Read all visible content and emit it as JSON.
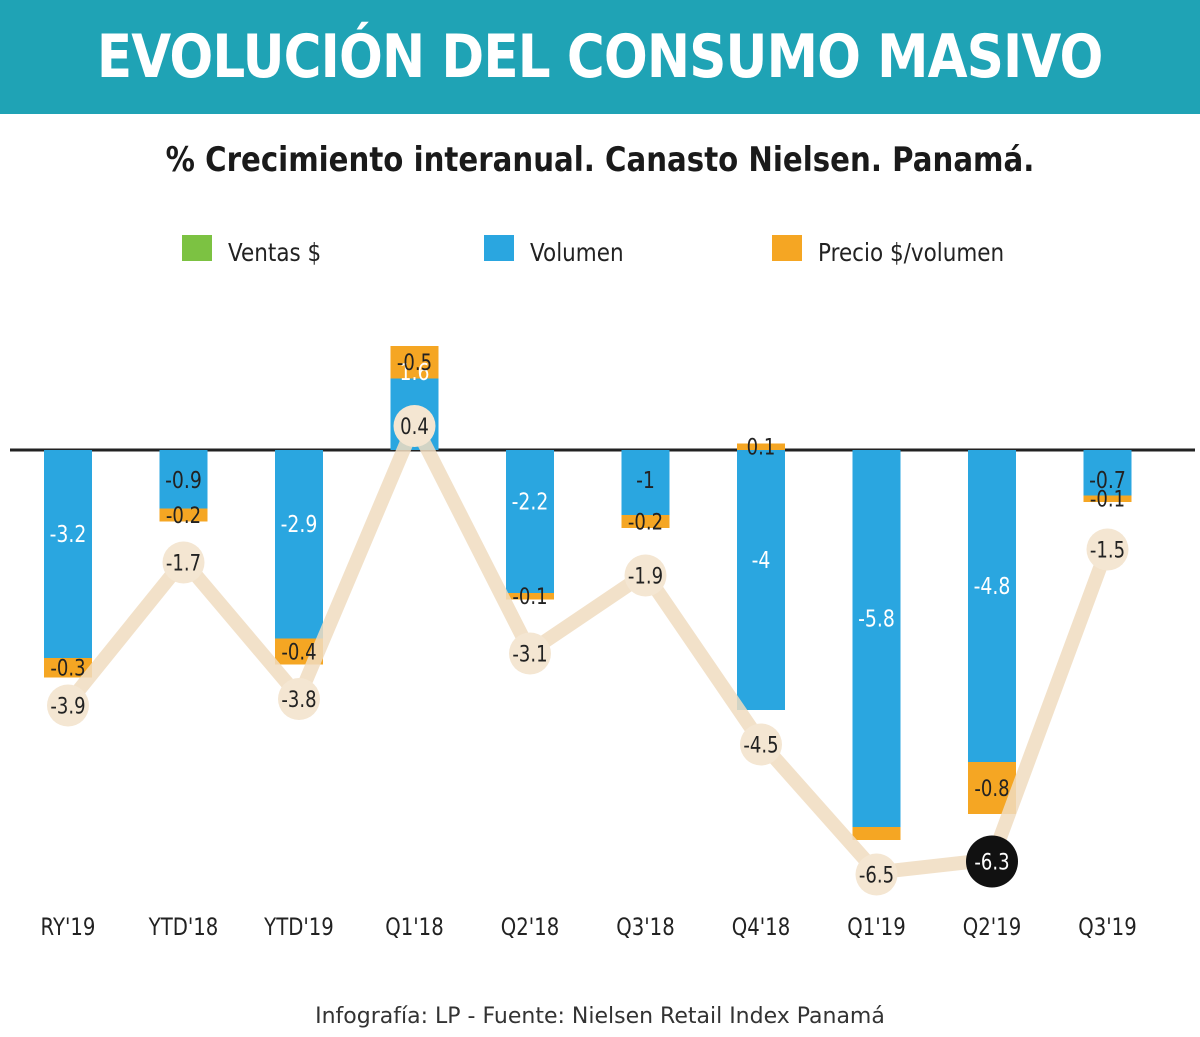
{
  "header": {
    "title": "EVOLUCIÓN DEL CONSUMO MASIVO",
    "subtitle": "% Crecimiento interanual. Canasto Nielsen. Panamá."
  },
  "legend": {
    "items": [
      {
        "label": "Ventas $",
        "color": "#7cc242"
      },
      {
        "label": "Volumen",
        "color": "#2aa6e0"
      },
      {
        "label": "Precio $/volumen",
        "color": "#f5a623"
      }
    ]
  },
  "chart_data": {
    "type": "bar",
    "categories": [
      "RY'19",
      "YTD'18",
      "YTD'19",
      "Q1'18",
      "Q2'18",
      "Q3'18",
      "Q4'18",
      "Q1'19",
      "Q2'19",
      "Q3'19"
    ],
    "series": [
      {
        "name": "Volumen",
        "kind": "bar",
        "color": "#2aa6e0",
        "values": [
          -3.2,
          -0.9,
          -2.9,
          1.6,
          -2.2,
          -1.0,
          -4.0,
          -5.8,
          -4.8,
          -0.7
        ]
      },
      {
        "name": "Precio $/volumen",
        "kind": "stacked-bar",
        "color": "#f5a623",
        "values": [
          -0.3,
          -0.2,
          -0.4,
          -0.5,
          -0.1,
          -0.2,
          0.1,
          -0.2,
          -0.8,
          -0.1
        ],
        "labels": [
          "-0.3",
          "-0.2",
          "-0.4",
          "-0.5",
          "-0.1",
          "-0.2",
          "0.1",
          "",
          "-0.8",
          "-0.1"
        ]
      },
      {
        "name": "Ventas $",
        "kind": "line",
        "color": "#f0dcc0",
        "values": [
          -3.9,
          -1.7,
          -3.8,
          0.4,
          -3.1,
          -1.9,
          -4.5,
          -6.5,
          -6.3,
          -1.5
        ]
      }
    ],
    "highlight_index": 8,
    "ylim": [
      -7,
      1.9
    ],
    "colors": {
      "zero_line": "#222222",
      "highlight": "#111111"
    }
  },
  "footer": {
    "source": "Infografía: LP - Fuente:  Nielsen Retail Index Panamá"
  }
}
